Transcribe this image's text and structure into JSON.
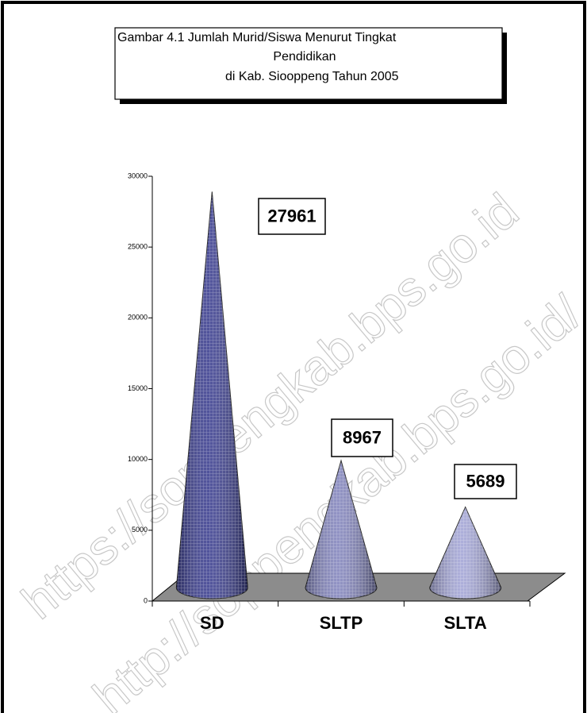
{
  "chart_data": {
    "type": "cone",
    "title": [
      "Gambar 4.1  Jumlah Murid/Siswa Menurut Tingkat",
      "Pendidikan",
      "di Kab. Siooppeng Tahun 2005"
    ],
    "categories": [
      "SD",
      "SLTP",
      "SLTA"
    ],
    "values": [
      27961,
      8967,
      5689
    ],
    "colors": [
      "#3d4090",
      "#8486bd",
      "#a4a6d6"
    ],
    "floor_color": "#8c8c8c",
    "ylim": [
      0,
      30000
    ],
    "yticks": [
      0,
      5000,
      10000,
      15000,
      20000,
      25000,
      30000
    ],
    "watermarks": [
      "https://soppengkab.bps.go.id",
      "http://soppengkab.bps.go.id/"
    ]
  }
}
